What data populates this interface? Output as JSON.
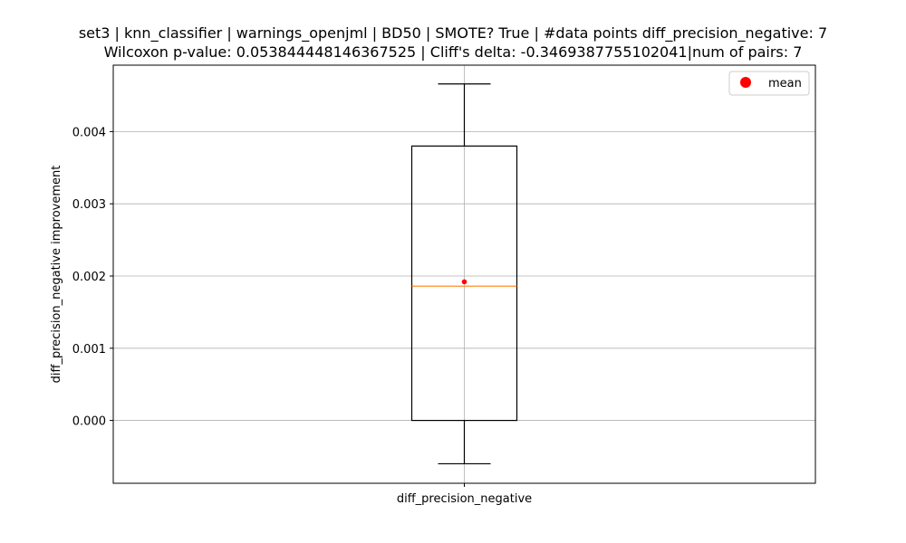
{
  "chart_data": {
    "type": "box",
    "title_lines": [
      "set3 | knn_classifier | warnings_openjml | BD50 | SMOTE? True | #data points diff_precision_negative: 7",
      "Wilcoxon p-value: 0.053844448146367525 | Cliff's delta: -0.3469387755102041|num of pairs: 7"
    ],
    "xlabel": "",
    "ylabel": "diff_precision_negative improvement",
    "categories": [
      "diff_precision_negative"
    ],
    "ylim": [
      -0.00087,
      0.00492
    ],
    "yticks": [
      0.0,
      0.001,
      0.002,
      0.003,
      0.004
    ],
    "ytick_labels": [
      "0.000",
      "0.001",
      "0.002",
      "0.003",
      "0.004"
    ],
    "grid": true,
    "box": {
      "whisker_low": -0.0006,
      "q1": 0.0,
      "median": 0.00186,
      "q3": 0.0038,
      "whisker_high": 0.00466,
      "mean": 0.00192
    },
    "legend": {
      "position": "upper-right",
      "entries": [
        {
          "label": "mean",
          "color": "#ff0000"
        }
      ]
    },
    "colors": {
      "box": "#000000",
      "median": "#ff7f0e",
      "mean": "#ff0000",
      "grid": "#b0b0b0"
    }
  }
}
